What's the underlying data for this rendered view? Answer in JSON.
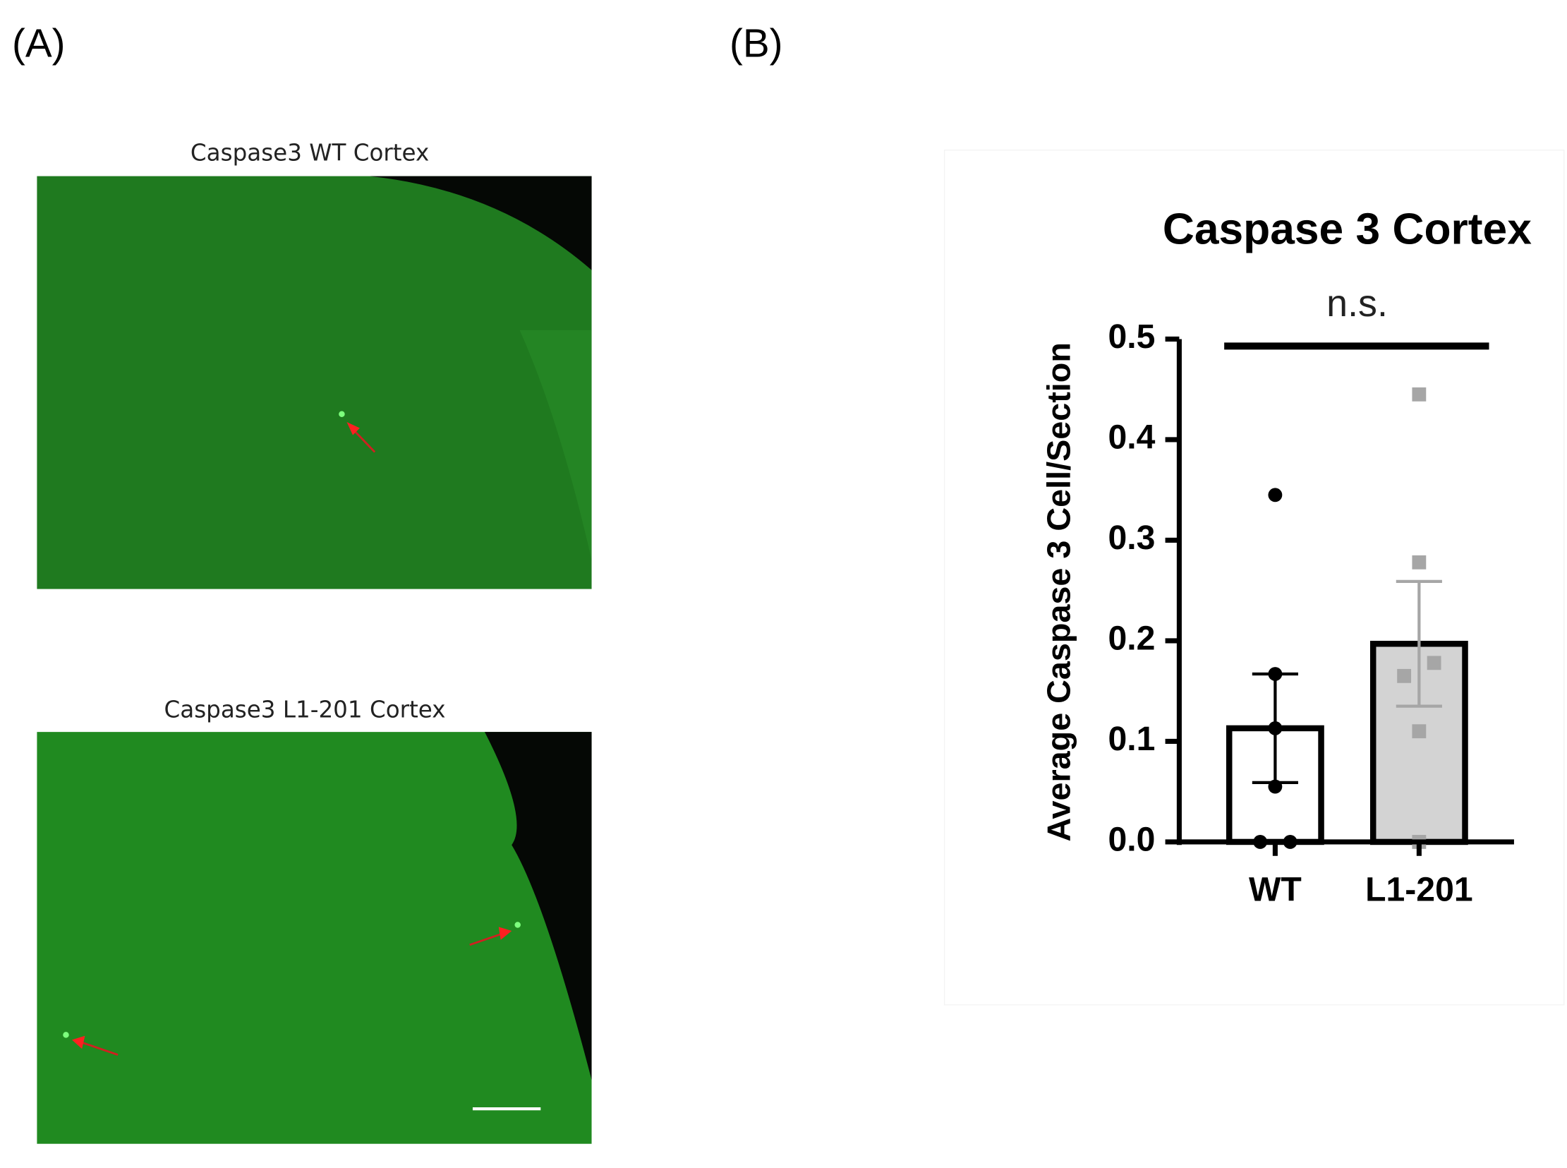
{
  "panels": {
    "a_label": "(A)",
    "b_label": "(B)",
    "image_top_title": "Caspase3 WT Cortex",
    "image_bottom_title": "Caspase3 L1-201 Cortex"
  },
  "chart_data": {
    "type": "bar",
    "title": "Caspase 3 Cortex",
    "y_label": "Average Caspase 3 Cell/Section",
    "categories": [
      "WT",
      "L1-201"
    ],
    "values": [
      0.113,
      0.197
    ],
    "errors": [
      0.054,
      0.062
    ],
    "colors": [
      "#ffffff",
      "#d3d3d3"
    ],
    "point_colors": [
      "#000000",
      "#a6a6a6"
    ],
    "points": [
      [
        0.345,
        0.167,
        0.113,
        0.055,
        0,
        0
      ],
      [
        0.445,
        0.278,
        0.165,
        0.178,
        0.11,
        0
      ]
    ],
    "ylim": [
      0,
      0.5
    ],
    "yticks": [
      {
        "value": 0,
        "label": "0.0"
      },
      0.1,
      0.2,
      0.3,
      0.4,
      0.5
    ],
    "annotation": "n.s."
  }
}
